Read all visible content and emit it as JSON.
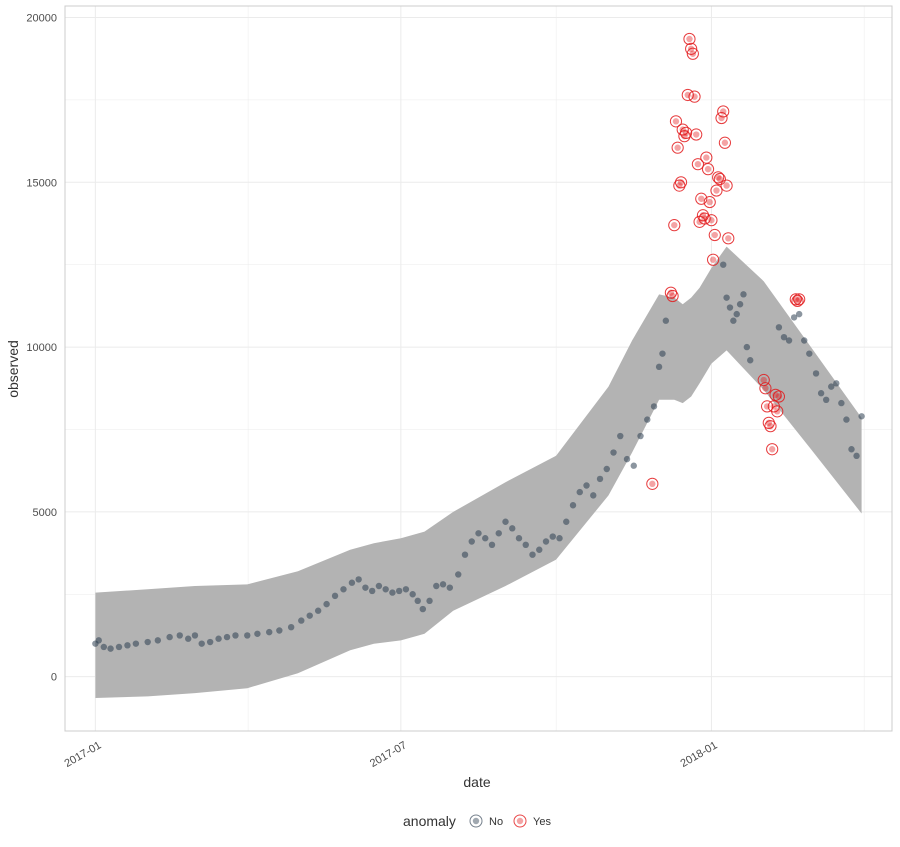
{
  "chart_data": {
    "type": "scatter",
    "title": "",
    "xlabel": "date",
    "ylabel": "observed",
    "x_type": "date",
    "xlim": [
      "2016-12-14",
      "2018-04-18"
    ],
    "ylim": [
      -1650,
      20350
    ],
    "x_ticks": [
      {
        "value": "2017-01-01",
        "label": "2017-01"
      },
      {
        "value": "2017-07-01",
        "label": "2017-07"
      },
      {
        "value": "2018-01-01",
        "label": "2018-01"
      }
    ],
    "y_ticks": [
      {
        "value": 0,
        "label": "0"
      },
      {
        "value": 5000,
        "label": "5000"
      },
      {
        "value": 10000,
        "label": "10000"
      },
      {
        "value": 15000,
        "label": "15000"
      },
      {
        "value": 20000,
        "label": "20000"
      }
    ],
    "grid": true,
    "colors": {
      "band": "#b3b3b3",
      "normal": "#2c3e50",
      "anomaly": "#e31a1c",
      "grid": "#ebebeb",
      "panel_border": "#cccccc"
    },
    "legend": {
      "title": "anomaly",
      "position": "bottom",
      "entries": [
        {
          "label": "No",
          "color": "#2c3e50"
        },
        {
          "label": "Yes",
          "color": "#e31a1c"
        }
      ]
    },
    "band": {
      "name": "",
      "x": [
        "2017-01-01",
        "2017-02-01",
        "2017-03-01",
        "2017-04-01",
        "2017-05-01",
        "2017-06-01",
        "2017-06-15",
        "2017-07-01",
        "2017-07-15",
        "2017-08-01",
        "2017-09-01",
        "2017-10-01",
        "2017-11-01",
        "2017-11-15",
        "2017-12-01",
        "2017-12-10",
        "2017-12-15",
        "2017-12-20",
        "2017-12-25",
        "2018-01-01",
        "2018-01-10",
        "2018-02-01",
        "2018-03-01",
        "2018-03-31"
      ],
      "upper": [
        2550,
        2650,
        2750,
        2800,
        3200,
        3850,
        4050,
        4200,
        4400,
        5000,
        5900,
        6700,
        8800,
        10200,
        11600,
        11500,
        11300,
        11500,
        11800,
        12400,
        13050,
        12000,
        10000,
        7850
      ],
      "lower": [
        -650,
        -600,
        -500,
        -350,
        100,
        800,
        1000,
        1100,
        1300,
        2000,
        2750,
        3550,
        5500,
        6800,
        8400,
        8400,
        8300,
        8500,
        8900,
        9500,
        9900,
        8700,
        6900,
        4950
      ]
    },
    "series": [
      {
        "name": "No",
        "color": "#2c3e50",
        "x": [
          "2017-01-01",
          "2017-01-03",
          "2017-01-06",
          "2017-01-10",
          "2017-01-15",
          "2017-01-20",
          "2017-01-25",
          "2017-02-01",
          "2017-02-07",
          "2017-02-14",
          "2017-02-20",
          "2017-02-25",
          "2017-03-01",
          "2017-03-05",
          "2017-03-10",
          "2017-03-15",
          "2017-03-20",
          "2017-03-25",
          "2017-04-01",
          "2017-04-07",
          "2017-04-14",
          "2017-04-20",
          "2017-04-27",
          "2017-05-03",
          "2017-05-08",
          "2017-05-13",
          "2017-05-18",
          "2017-05-23",
          "2017-05-28",
          "2017-06-02",
          "2017-06-06",
          "2017-06-10",
          "2017-06-14",
          "2017-06-18",
          "2017-06-22",
          "2017-06-26",
          "2017-06-30",
          "2017-07-04",
          "2017-07-08",
          "2017-07-11",
          "2017-07-14",
          "2017-07-18",
          "2017-07-22",
          "2017-07-26",
          "2017-07-30",
          "2017-08-04",
          "2017-08-08",
          "2017-08-12",
          "2017-08-16",
          "2017-08-20",
          "2017-08-24",
          "2017-08-28",
          "2017-09-01",
          "2017-09-05",
          "2017-09-09",
          "2017-09-13",
          "2017-09-17",
          "2017-09-21",
          "2017-09-25",
          "2017-09-29",
          "2017-10-03",
          "2017-10-07",
          "2017-10-11",
          "2017-10-15",
          "2017-10-19",
          "2017-10-23",
          "2017-10-27",
          "2017-10-31",
          "2017-11-04",
          "2017-11-08",
          "2017-11-12",
          "2017-11-16",
          "2017-11-20",
          "2017-11-24",
          "2017-11-28",
          "2017-12-01",
          "2017-12-03",
          "2017-12-05",
          "2018-01-08",
          "2018-01-10",
          "2018-01-12",
          "2018-01-14",
          "2018-01-16",
          "2018-01-18",
          "2018-01-20",
          "2018-01-22",
          "2018-01-24",
          "2018-02-10",
          "2018-02-13",
          "2018-02-16",
          "2018-02-19",
          "2018-02-22",
          "2018-02-25",
          "2018-02-28",
          "2018-03-04",
          "2018-03-07",
          "2018-03-10",
          "2018-03-13",
          "2018-03-16",
          "2018-03-19",
          "2018-03-22",
          "2018-03-25",
          "2018-03-28",
          "2018-03-31"
        ],
        "y": [
          1000,
          1100,
          900,
          850,
          900,
          950,
          1000,
          1050,
          1100,
          1200,
          1250,
          1150,
          1250,
          1000,
          1050,
          1150,
          1200,
          1250,
          1250,
          1300,
          1350,
          1400,
          1500,
          1700,
          1850,
          2000,
          2200,
          2450,
          2650,
          2850,
          2950,
          2700,
          2600,
          2750,
          2650,
          2550,
          2600,
          2650,
          2500,
          2300,
          2050,
          2300,
          2750,
          2800,
          2700,
          3100,
          3700,
          4100,
          4350,
          4200,
          4000,
          4350,
          4700,
          4500,
          4200,
          4000,
          3700,
          3850,
          4100,
          4250,
          4200,
          4700,
          5200,
          5600,
          5800,
          5500,
          6000,
          6300,
          6800,
          7300,
          6600,
          6400,
          7300,
          7800,
          8200,
          9400,
          9800,
          10800,
          12500,
          11500,
          11200,
          10800,
          11000,
          11300,
          11600,
          10000,
          9600,
          10600,
          10300,
          10200,
          10900,
          11000,
          10200,
          9800,
          9200,
          8600,
          8400,
          8800,
          8900,
          8300,
          7800,
          6900,
          6700,
          7900
        ]
      },
      {
        "name": "Yes",
        "color": "#e31a1c",
        "x": [
          "2017-11-27",
          "2017-12-08",
          "2017-12-09",
          "2017-12-10",
          "2017-12-11",
          "2017-12-12",
          "2017-12-13",
          "2017-12-14",
          "2017-12-15",
          "2017-12-16",
          "2017-12-17",
          "2017-12-18",
          "2017-12-19",
          "2017-12-20",
          "2017-12-21",
          "2017-12-22",
          "2017-12-23",
          "2017-12-24",
          "2017-12-25",
          "2017-12-26",
          "2017-12-27",
          "2017-12-28",
          "2017-12-29",
          "2017-12-30",
          "2017-12-31",
          "2018-01-01",
          "2018-01-02",
          "2018-01-03",
          "2018-01-04",
          "2018-01-05",
          "2018-01-06",
          "2018-01-07",
          "2018-01-08",
          "2018-01-09",
          "2018-01-10",
          "2018-01-11",
          "2018-02-01",
          "2018-02-02",
          "2018-02-03",
          "2018-02-04",
          "2018-02-05",
          "2018-02-06",
          "2018-02-07",
          "2018-02-08",
          "2018-02-09",
          "2018-02-10",
          "2018-02-20",
          "2018-02-21",
          "2018-02-22"
        ],
        "y": [
          5850,
          11650,
          11550,
          13700,
          16850,
          16050,
          14900,
          15000,
          16600,
          16400,
          16500,
          17650,
          19350,
          19050,
          18900,
          17600,
          16450,
          15550,
          13800,
          14500,
          14000,
          13900,
          15750,
          15400,
          14400,
          13850,
          12650,
          13400,
          14750,
          15150,
          15100,
          16950,
          17150,
          16200,
          14900,
          13300,
          9000,
          8750,
          8200,
          7700,
          7600,
          6900,
          8200,
          8550,
          8050,
          8500,
          11450,
          11400,
          11450
        ]
      }
    ]
  }
}
